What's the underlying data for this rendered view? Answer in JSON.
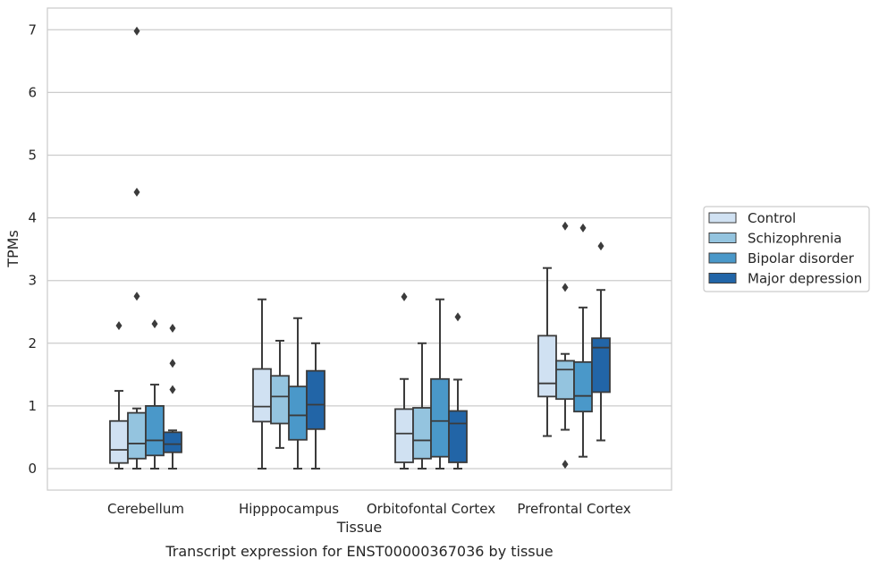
{
  "caption": "Transcript expression for ENST00000367036 by tissue",
  "chart_data": {
    "type": "boxplot",
    "xlabel": "Tissue",
    "ylabel": "TPMs",
    "ylim": [
      -0.33,
      7.35
    ],
    "yticks": [
      0,
      1,
      2,
      3,
      4,
      5,
      6,
      7
    ],
    "categories": [
      "Cerebellum",
      "Hipppocampus",
      "Orbitofontal Cortex",
      "Prefrontal Cortex"
    ],
    "grid": "horizontal",
    "legend_position": "right",
    "series": [
      {
        "name": "Control",
        "color": "#d0e1f2",
        "boxes": [
          {
            "whislo": 0.0,
            "q1": 0.09,
            "med": 0.3,
            "q3": 0.76,
            "whishi": 1.24,
            "fliers": [
              2.28
            ]
          },
          {
            "whislo": 0.0,
            "q1": 0.75,
            "med": 0.99,
            "q3": 1.59,
            "whishi": 2.7,
            "fliers": []
          },
          {
            "whislo": 0.0,
            "q1": 0.1,
            "med": 0.56,
            "q3": 0.95,
            "whishi": 1.43,
            "fliers": [
              2.74
            ]
          },
          {
            "whislo": 0.52,
            "q1": 1.15,
            "med": 1.36,
            "q3": 2.12,
            "whishi": 3.2,
            "fliers": []
          }
        ]
      },
      {
        "name": "Schizophrenia",
        "color": "#94c4df",
        "boxes": [
          {
            "whislo": 0.0,
            "q1": 0.16,
            "med": 0.4,
            "q3": 0.89,
            "whishi": 0.96,
            "fliers": [
              2.75,
              4.41,
              6.98
            ]
          },
          {
            "whislo": 0.33,
            "q1": 0.72,
            "med": 1.15,
            "q3": 1.48,
            "whishi": 2.04,
            "fliers": []
          },
          {
            "whislo": 0.0,
            "q1": 0.16,
            "med": 0.45,
            "q3": 0.97,
            "whishi": 2.0,
            "fliers": []
          },
          {
            "whislo": 0.62,
            "q1": 1.11,
            "med": 1.58,
            "q3": 1.72,
            "whishi": 1.83,
            "fliers": [
              0.07,
              2.89,
              3.87
            ]
          }
        ]
      },
      {
        "name": "Bipolar disorder",
        "color": "#4a98c9",
        "boxes": [
          {
            "whislo": 0.0,
            "q1": 0.21,
            "med": 0.45,
            "q3": 1.0,
            "whishi": 1.34,
            "fliers": [
              2.31
            ]
          },
          {
            "whislo": 0.0,
            "q1": 0.46,
            "med": 0.85,
            "q3": 1.31,
            "whishi": 2.4,
            "fliers": []
          },
          {
            "whislo": 0.0,
            "q1": 0.19,
            "med": 0.76,
            "q3": 1.43,
            "whishi": 2.7,
            "fliers": []
          },
          {
            "whislo": 0.19,
            "q1": 0.91,
            "med": 1.16,
            "q3": 1.7,
            "whishi": 2.57,
            "fliers": [
              3.84
            ]
          }
        ]
      },
      {
        "name": "Major depression",
        "color": "#2265a7",
        "boxes": [
          {
            "whislo": 0.0,
            "q1": 0.26,
            "med": 0.39,
            "q3": 0.58,
            "whishi": 0.61,
            "fliers": [
              1.26,
              1.68,
              2.24
            ]
          },
          {
            "whislo": 0.0,
            "q1": 0.63,
            "med": 1.02,
            "q3": 1.56,
            "whishi": 2.0,
            "fliers": []
          },
          {
            "whislo": 0.0,
            "q1": 0.1,
            "med": 0.72,
            "q3": 0.92,
            "whishi": 1.42,
            "fliers": [
              2.42
            ]
          },
          {
            "whislo": 0.45,
            "q1": 1.22,
            "med": 1.93,
            "q3": 2.08,
            "whishi": 2.85,
            "fliers": [
              3.55
            ]
          }
        ]
      }
    ]
  }
}
